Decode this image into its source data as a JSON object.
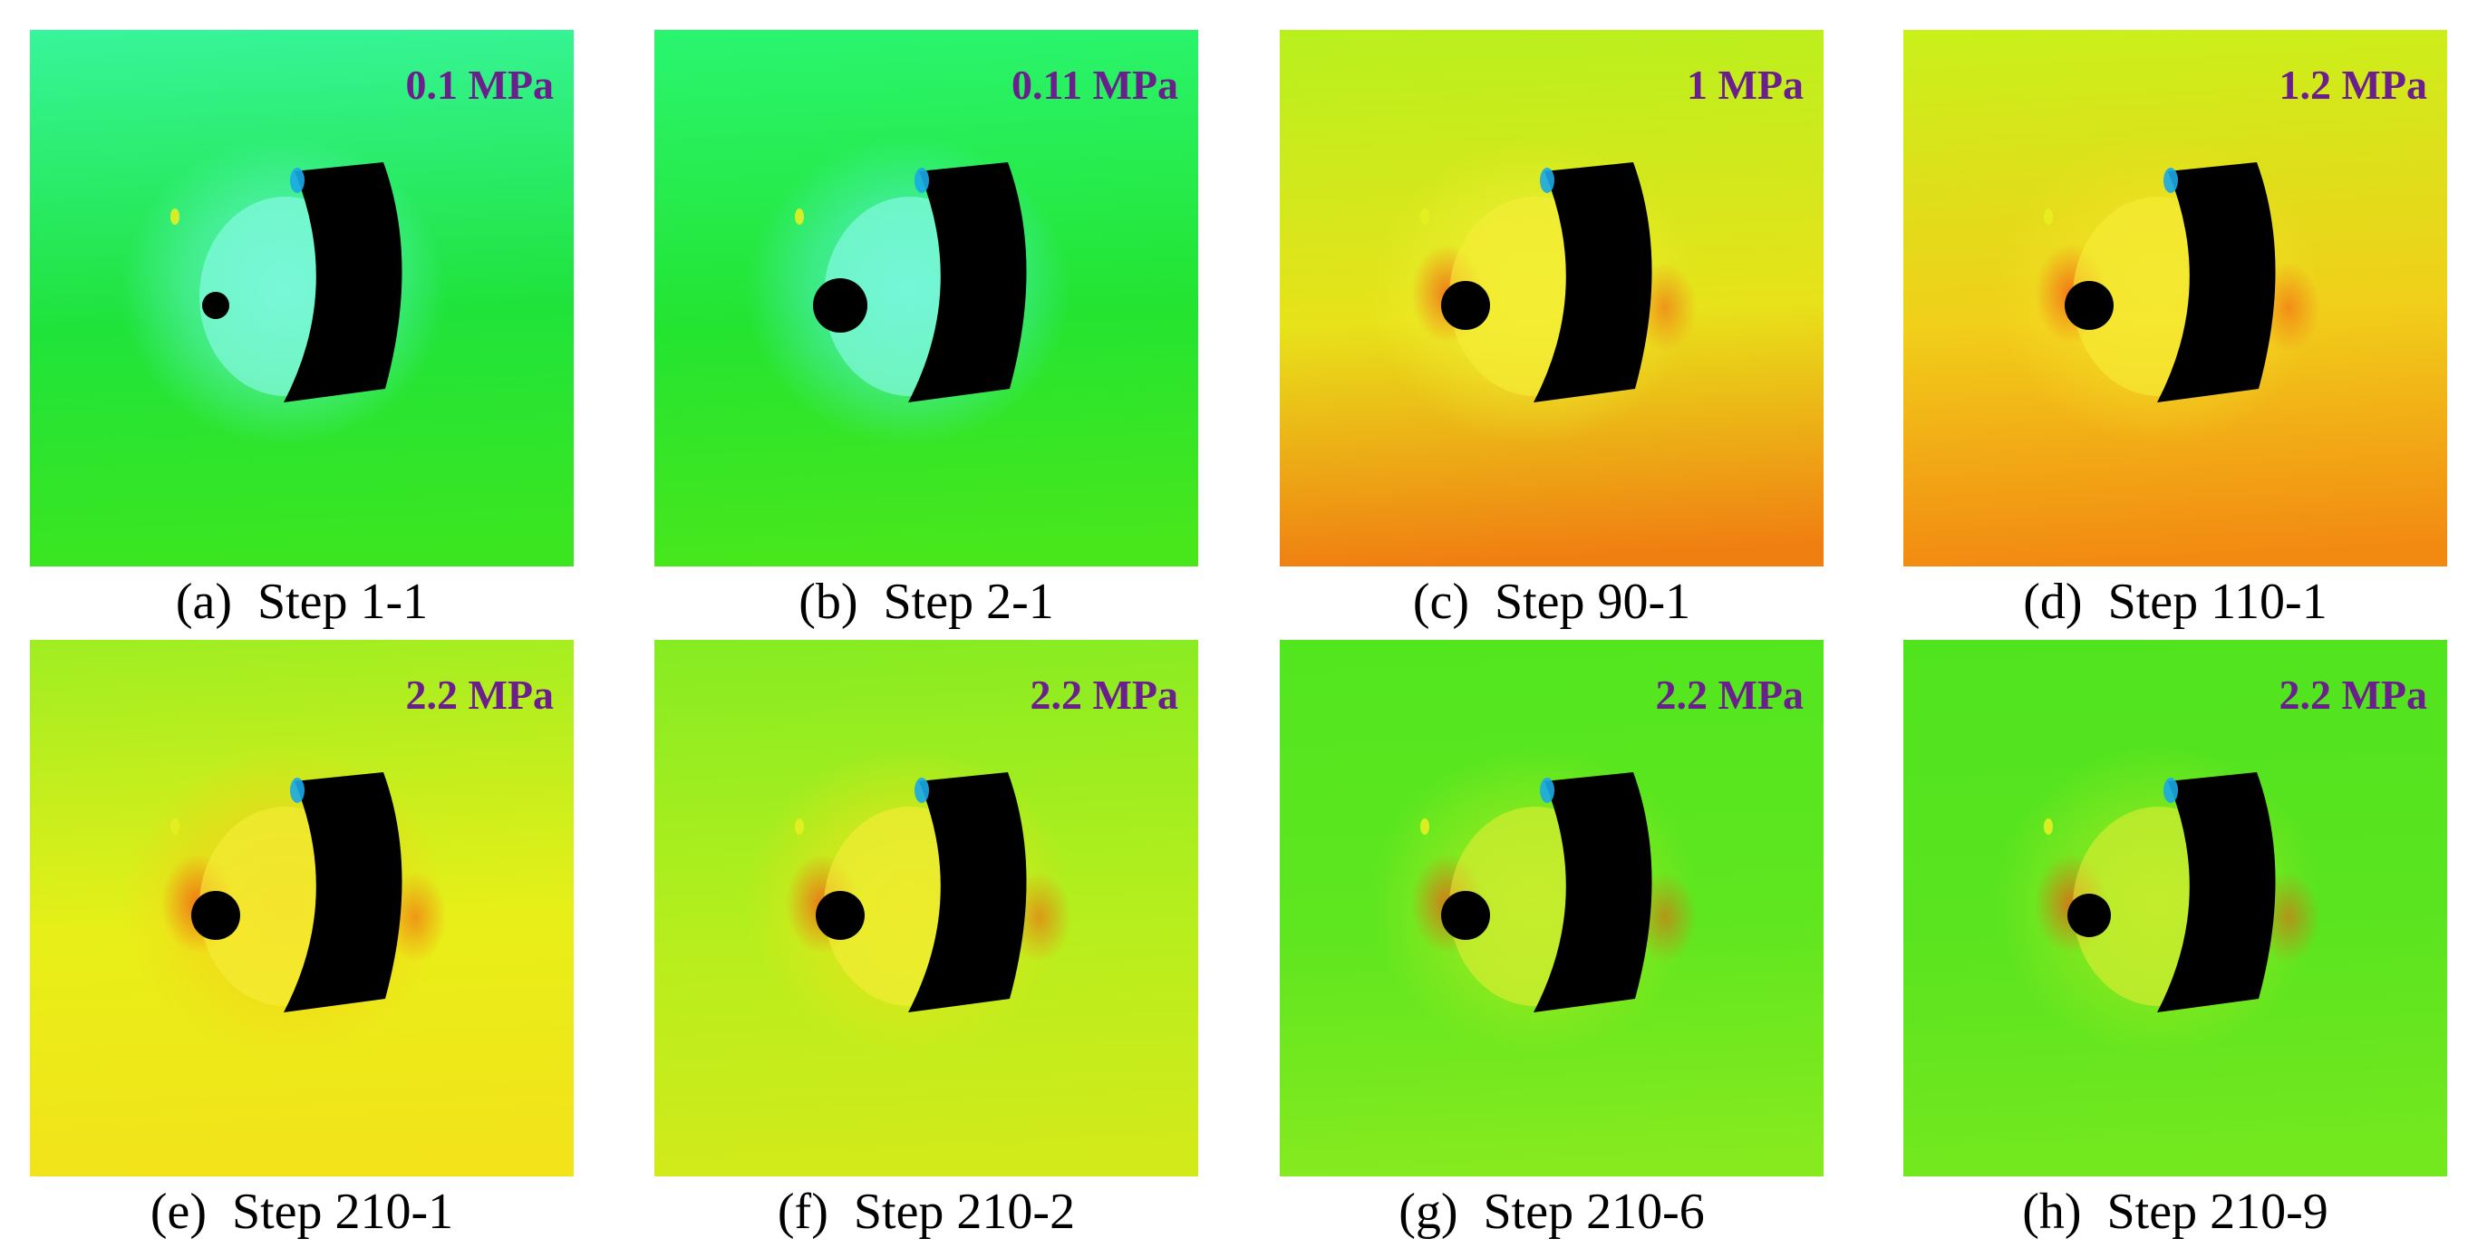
{
  "panels": [
    {
      "letter": "(a)",
      "step": "Step 1-1",
      "pressure": "0.1 MPa",
      "bg": [
        "#37f59a",
        "#1fe33b",
        "#3be620"
      ],
      "hole_r": 0.05,
      "halo": "#6ff7e6",
      "tint": "cyan"
    },
    {
      "letter": "(b)",
      "step": "Step 2-1",
      "pressure": "0.11 MPa",
      "bg": [
        "#2af570",
        "#23e431",
        "#48e71c"
      ],
      "hole_r": 0.1,
      "halo": "#5df1ea",
      "tint": "cyan"
    },
    {
      "letter": "(c)",
      "step": "Step 90-1",
      "pressure": "1 MPa",
      "bg": [
        "#b8f01d",
        "#e8e21a",
        "#f07f12"
      ],
      "hole_r": 0.09,
      "halo": "#f2f236",
      "tint": "warm"
    },
    {
      "letter": "(d)",
      "step": "Step 110-1",
      "pressure": "1.2 MPa",
      "bg": [
        "#c9f11a",
        "#f1cf1a",
        "#f28a12"
      ],
      "hole_r": 0.09,
      "halo": "#f5e428",
      "tint": "warm"
    },
    {
      "letter": "(e)",
      "step": "Step 210-1",
      "pressure": "2.2 MPa",
      "bg": [
        "#9fee22",
        "#e8ef18",
        "#f2e31a"
      ],
      "hole_r": 0.09,
      "halo": "#f5cc1a",
      "tint": "warm"
    },
    {
      "letter": "(f)",
      "step": "Step 210-2",
      "pressure": "2.2 MPa",
      "bg": [
        "#86ec22",
        "#b6ee1d",
        "#d2ea1a"
      ],
      "hole_r": 0.09,
      "halo": "#f2e31a",
      "tint": "warm"
    },
    {
      "letter": "(g)",
      "step": "Step 210-6",
      "pressure": "2.2 MPa",
      "bg": [
        "#52e61f",
        "#5fe61f",
        "#86ea1f"
      ],
      "hole_r": 0.09,
      "halo": "#e7f020",
      "tint": "green"
    },
    {
      "letter": "(h)",
      "step": "Step 210-9",
      "pressure": "2.2 MPa",
      "bg": [
        "#50e41f",
        "#5ae41f",
        "#74e81f"
      ],
      "hole_r": 0.08,
      "halo": "#d8ef20",
      "tint": "green"
    }
  ]
}
